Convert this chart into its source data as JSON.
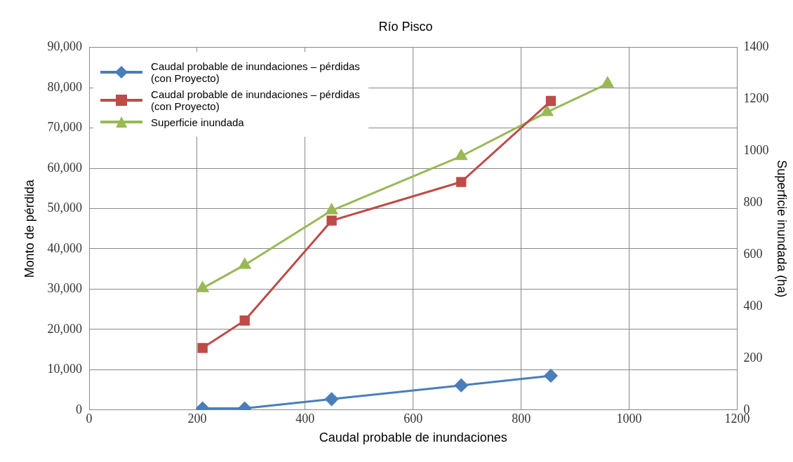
{
  "chart_data": {
    "type": "line",
    "title": "Río Pisco",
    "xlabel": "Caudal probable de inundaciones",
    "ylabel": "Monto de pérdida",
    "y2label": "Superficie inundada (ha)",
    "xlim": [
      0,
      1200
    ],
    "xticks": [
      0,
      200,
      400,
      600,
      800,
      1000,
      1200
    ],
    "ylim": [
      0,
      90000
    ],
    "yticks": [
      0,
      {
        "value": 10000,
        "label": "10,000"
      },
      {
        "value": 20000,
        "label": "20,000"
      },
      {
        "value": 30000,
        "label": "30,000"
      },
      {
        "value": 40000,
        "label": "40,000"
      },
      {
        "value": 50000,
        "label": "50,000"
      },
      {
        "value": 60000,
        "label": "60,000"
      },
      {
        "value": 70000,
        "label": "70,000"
      },
      {
        "value": 80000,
        "label": "80,000"
      },
      {
        "value": 90000,
        "label": "90,000"
      }
    ],
    "y2lim": [
      0,
      1400
    ],
    "y2ticks": [
      0,
      200,
      400,
      600,
      800,
      1000,
      1200,
      1400
    ],
    "grid": true,
    "legend": "top left",
    "series": [
      {
        "name": "Caudal probable de inundaciones – pérdidas (con Proyecto)",
        "color": "#4a7ebb",
        "marker": "diamond",
        "x": [
          210,
          288,
          449,
          689,
          855
        ],
        "values": [
          400,
          400,
          2700,
          6100,
          8500
        ]
      },
      {
        "name": "Caudal probable de inundaciones – pérdidas (con Proyecto)",
        "color": "#be4b48",
        "marker": "square",
        "x": [
          210,
          288,
          449,
          689,
          855
        ],
        "values": [
          15400,
          22200,
          47000,
          56600,
          76700
        ]
      },
      {
        "name": "Superficie inundada",
        "color": "#98b954",
        "marker": "triangle",
        "axis": "y2",
        "x": [
          210,
          288,
          449,
          689,
          848,
          960
        ],
        "values": [
          470,
          560,
          770,
          980,
          1150,
          1260
        ]
      }
    ]
  }
}
